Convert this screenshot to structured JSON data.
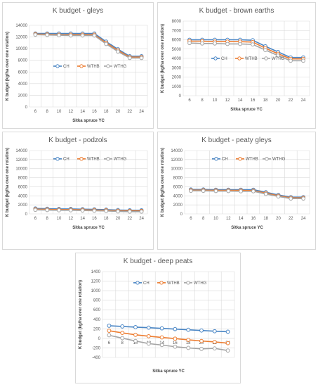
{
  "colors": {
    "CH": "#4a86c5",
    "WTHB": "#ed7d31",
    "WTHG": "#a5a5a5",
    "grid": "#d9d9d9",
    "text": "#595959"
  },
  "chart_data": [
    {
      "type": "line",
      "title": "K budget - gleys",
      "xlabel": "Sitka spruce YC",
      "ylabel": "K budget (kg/ha over one rotation)",
      "x": [
        6,
        8,
        10,
        12,
        14,
        16,
        18,
        20,
        22,
        24
      ],
      "ylim": [
        0,
        14000
      ],
      "yticks": [
        0,
        2000,
        4000,
        6000,
        8000,
        10000,
        12000,
        14000
      ],
      "grid": true,
      "legend": "middle-center",
      "series": [
        {
          "name": "CH",
          "values": [
            12600,
            12600,
            12600,
            12600,
            12600,
            12600,
            11200,
            9900,
            8700,
            8700
          ]
        },
        {
          "name": "WTHB",
          "values": [
            12500,
            12450,
            12400,
            12400,
            12400,
            12400,
            11000,
            9700,
            8550,
            8550
          ]
        },
        {
          "name": "WTHG",
          "values": [
            12400,
            12350,
            12300,
            12250,
            12250,
            12250,
            10800,
            9500,
            8400,
            8400
          ]
        }
      ]
    },
    {
      "type": "line",
      "title": "K budget - brown earths",
      "xlabel": "Sitka spruce YC",
      "ylabel": "K budget (kg/ha over one rotation)",
      "x": [
        6,
        8,
        10,
        12,
        14,
        16,
        18,
        20,
        22,
        24
      ],
      "ylim": [
        0,
        8000
      ],
      "yticks": [
        0,
        1000,
        2000,
        3000,
        4000,
        5000,
        6000,
        7000,
        8000
      ],
      "grid": true,
      "legend": "middle-center",
      "series": [
        {
          "name": "CH",
          "values": [
            6000,
            6000,
            6000,
            6000,
            6000,
            5950,
            5300,
            4700,
            4100,
            4100
          ]
        },
        {
          "name": "WTHB",
          "values": [
            5850,
            5850,
            5800,
            5800,
            5800,
            5750,
            5100,
            4500,
            3950,
            3950
          ]
        },
        {
          "name": "WTHG",
          "values": [
            5650,
            5600,
            5600,
            5550,
            5550,
            5500,
            4900,
            4300,
            3750,
            3750
          ]
        }
      ]
    },
    {
      "type": "line",
      "title": "K budget - podzols",
      "xlabel": "Sitka spruce YC",
      "ylabel": "K budget (kg/ha over one rotation)",
      "x": [
        6,
        8,
        10,
        12,
        14,
        16,
        18,
        20,
        22,
        24
      ],
      "ylim": [
        0,
        14000
      ],
      "yticks": [
        0,
        2000,
        4000,
        6000,
        8000,
        10000,
        12000,
        14000
      ],
      "grid": true,
      "legend": "top-center",
      "series": [
        {
          "name": "CH",
          "values": [
            1200,
            1150,
            1100,
            1100,
            1050,
            1000,
            950,
            850,
            800,
            800
          ]
        },
        {
          "name": "WTHB",
          "values": [
            1050,
            1000,
            950,
            950,
            900,
            850,
            800,
            700,
            650,
            650
          ]
        },
        {
          "name": "WTHG",
          "values": [
            900,
            850,
            800,
            800,
            750,
            700,
            650,
            550,
            500,
            500
          ]
        }
      ]
    },
    {
      "type": "line",
      "title": "K budget - peaty gleys",
      "xlabel": "Sitka spruce YC",
      "ylabel": "K budget (kg/ha over one rotation)",
      "x": [
        6,
        8,
        10,
        12,
        14,
        16,
        18,
        20,
        22,
        24
      ],
      "ylim": [
        0,
        14000
      ],
      "yticks": [
        0,
        2000,
        4000,
        6000,
        8000,
        10000,
        12000,
        14000
      ],
      "grid": true,
      "legend": "top-center",
      "series": [
        {
          "name": "CH",
          "values": [
            5400,
            5400,
            5350,
            5350,
            5350,
            5350,
            4800,
            4200,
            3700,
            3700
          ]
        },
        {
          "name": "WTHB",
          "values": [
            5250,
            5250,
            5200,
            5200,
            5200,
            5150,
            4600,
            4000,
            3550,
            3550
          ]
        },
        {
          "name": "WTHG",
          "values": [
            5100,
            5100,
            5050,
            5050,
            5000,
            5000,
            4400,
            3850,
            3400,
            3400
          ]
        }
      ]
    },
    {
      "type": "line",
      "title": "K budget - deep peats",
      "xlabel": "Sitka spruce YC",
      "ylabel": "K budget (kg/ha over one rotation)",
      "x": [
        6,
        8,
        10,
        12,
        14,
        16,
        18,
        20,
        22,
        24
      ],
      "ylim": [
        -400,
        1400
      ],
      "yticks": [
        -400,
        -200,
        0,
        200,
        400,
        600,
        800,
        1000,
        1200,
        1400
      ],
      "grid": true,
      "legend": "top-center",
      "series": [
        {
          "name": "CH",
          "values": [
            265,
            250,
            235,
            225,
            210,
            195,
            180,
            165,
            150,
            140
          ]
        },
        {
          "name": "WTHB",
          "values": [
            160,
            115,
            75,
            45,
            20,
            -5,
            -30,
            -55,
            -75,
            -100
          ]
        },
        {
          "name": "WTHG",
          "values": [
            65,
            5,
            -55,
            -110,
            -140,
            -175,
            -200,
            -220,
            -210,
            -255
          ]
        }
      ]
    }
  ]
}
